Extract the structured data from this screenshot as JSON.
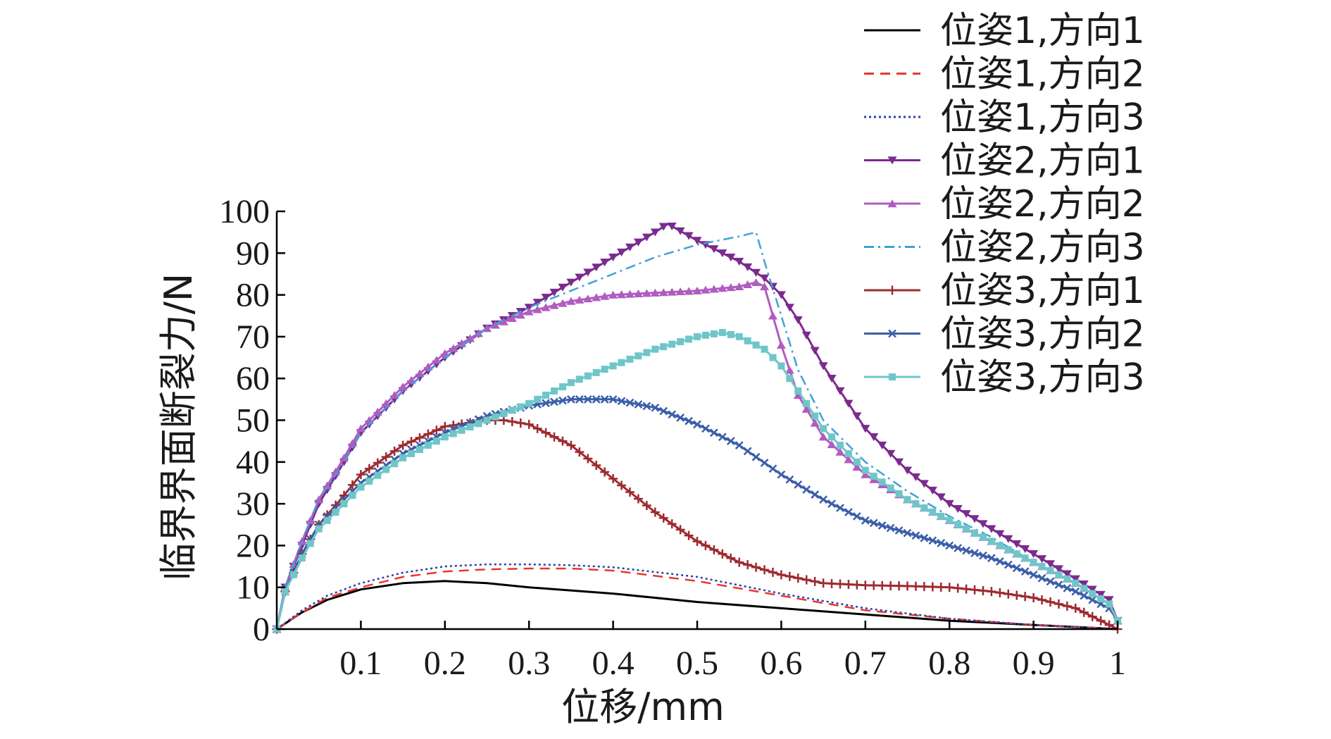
{
  "chart_data": {
    "type": "line",
    "title": "",
    "xlabel": "位移/mm",
    "ylabel": "临界界面断裂力/N",
    "xlim": [
      0,
      1
    ],
    "ylim": [
      0,
      100
    ],
    "xticks": [
      0.1,
      0.2,
      0.3,
      0.4,
      0.5,
      0.6,
      0.7,
      0.8,
      0.9,
      1
    ],
    "xtick_labels": [
      "0.1",
      "0.2",
      "0.3",
      "0.4",
      "0.5",
      "0.6",
      "0.7",
      "0.8",
      "0.9",
      "1"
    ],
    "yticks": [
      0,
      10,
      20,
      30,
      40,
      50,
      60,
      70,
      80,
      90,
      100
    ],
    "ytick_labels": [
      "0",
      "10",
      "20",
      "30",
      "40",
      "50",
      "60",
      "70",
      "80",
      "90",
      "100"
    ],
    "grid": false,
    "legend_position": "top-right",
    "series": [
      {
        "name": "位姿1,方向1",
        "color": "#000000",
        "dash": "solid",
        "marker": "none",
        "x": [
          0,
          0.03,
          0.06,
          0.1,
          0.15,
          0.2,
          0.25,
          0.3,
          0.4,
          0.5,
          0.6,
          0.7,
          0.8,
          0.9,
          0.95,
          1
        ],
        "y": [
          0,
          4,
          7,
          9.5,
          11,
          11.5,
          11,
          10,
          8.5,
          6.5,
          5,
          3.5,
          2,
          1,
          0.5,
          0
        ]
      },
      {
        "name": "位姿1,方向2",
        "color": "#e8372b",
        "dash": "dashed",
        "marker": "none",
        "x": [
          0,
          0.03,
          0.06,
          0.1,
          0.15,
          0.2,
          0.25,
          0.3,
          0.35,
          0.4,
          0.5,
          0.6,
          0.7,
          0.8,
          0.9,
          0.95,
          1
        ],
        "y": [
          0,
          4,
          7.5,
          10,
          12.5,
          13.8,
          14.3,
          14.5,
          14.5,
          14,
          11.5,
          8,
          4.5,
          2.5,
          1,
          0.5,
          0
        ]
      },
      {
        "name": "位姿1,方向3",
        "color": "#2c3fa8",
        "dash": "dotted",
        "marker": "none",
        "x": [
          0,
          0.03,
          0.06,
          0.1,
          0.15,
          0.2,
          0.25,
          0.3,
          0.35,
          0.4,
          0.5,
          0.6,
          0.7,
          0.8,
          0.9,
          0.95,
          1
        ],
        "y": [
          0,
          4.5,
          8,
          11,
          13.5,
          15,
          15.5,
          15.5,
          15.3,
          14.8,
          12.5,
          8.5,
          5,
          2.5,
          1,
          0.5,
          0
        ]
      },
      {
        "name": "位姿2,方向1",
        "color": "#7b2a8e",
        "dash": "solid",
        "marker": "triangle-down",
        "x": [
          0,
          0.01,
          0.03,
          0.05,
          0.08,
          0.1,
          0.15,
          0.2,
          0.25,
          0.3,
          0.35,
          0.4,
          0.45,
          0.465,
          0.5,
          0.55,
          0.58,
          0.6,
          0.62,
          0.65,
          0.7,
          0.75,
          0.8,
          0.85,
          0.9,
          0.95,
          0.99,
          1
        ],
        "y": [
          0,
          10,
          20,
          30,
          40,
          47,
          57,
          65,
          72,
          77,
          83,
          89,
          95,
          97,
          93,
          88,
          84,
          80,
          74,
          63,
          48,
          38,
          30,
          24,
          18,
          12,
          7,
          2
        ]
      },
      {
        "name": "位姿2,方向2",
        "color": "#b05cc0",
        "dash": "solid",
        "marker": "triangle-up",
        "x": [
          0,
          0.01,
          0.03,
          0.05,
          0.08,
          0.1,
          0.15,
          0.2,
          0.25,
          0.3,
          0.35,
          0.4,
          0.45,
          0.5,
          0.55,
          0.57,
          0.58,
          0.6,
          0.62,
          0.65,
          0.7,
          0.75,
          0.8,
          0.85,
          0.9,
          0.95,
          0.99,
          1
        ],
        "y": [
          0,
          10,
          21,
          31,
          41,
          48,
          58,
          66,
          72,
          76,
          78.5,
          80,
          80.5,
          81,
          82,
          83,
          82,
          68,
          56,
          46,
          37,
          31,
          26,
          21,
          16,
          11,
          6,
          2
        ]
      },
      {
        "name": "位姿2,方向3",
        "color": "#3fa2d6",
        "dash": "dashdot",
        "marker": "none",
        "x": [
          0,
          0.01,
          0.03,
          0.05,
          0.08,
          0.1,
          0.15,
          0.2,
          0.25,
          0.3,
          0.35,
          0.4,
          0.45,
          0.5,
          0.55,
          0.57,
          0.58,
          0.6,
          0.62,
          0.65,
          0.7,
          0.75,
          0.8,
          0.85,
          0.9,
          0.95,
          0.99,
          1
        ],
        "y": [
          0,
          10,
          21,
          31,
          40,
          47,
          57,
          65,
          72,
          77,
          81,
          85,
          89,
          92,
          94,
          95,
          88,
          75,
          62,
          50,
          40,
          33,
          27,
          22,
          16,
          11,
          6,
          2
        ]
      },
      {
        "name": "位姿3,方向1",
        "color": "#9e2a2f",
        "dash": "solid",
        "marker": "plus",
        "x": [
          0,
          0.01,
          0.03,
          0.05,
          0.08,
          0.1,
          0.15,
          0.2,
          0.25,
          0.27,
          0.3,
          0.35,
          0.4,
          0.45,
          0.5,
          0.55,
          0.6,
          0.65,
          0.7,
          0.75,
          0.8,
          0.85,
          0.9,
          0.95,
          1
        ],
        "y": [
          0,
          9,
          18,
          25,
          32,
          37,
          44,
          48.5,
          50,
          50,
          49,
          44,
          36,
          28,
          21,
          16,
          13,
          11,
          10.5,
          10.3,
          10,
          9,
          7.5,
          5,
          0
        ]
      },
      {
        "name": "位姿3,方向2",
        "color": "#3b5ea8",
        "dash": "solid",
        "marker": "x",
        "x": [
          0,
          0.01,
          0.03,
          0.05,
          0.08,
          0.1,
          0.15,
          0.2,
          0.25,
          0.3,
          0.35,
          0.4,
          0.45,
          0.5,
          0.55,
          0.6,
          0.65,
          0.7,
          0.75,
          0.8,
          0.85,
          0.9,
          0.95,
          0.99,
          1
        ],
        "y": [
          0,
          9,
          18,
          25,
          31,
          35,
          42,
          47,
          51,
          53.5,
          55,
          55,
          53,
          49,
          44,
          37,
          31,
          26,
          23,
          20,
          17,
          13,
          9,
          5,
          2
        ]
      },
      {
        "name": "位姿3,方向3",
        "color": "#6fc6c9",
        "dash": "solid",
        "marker": "square",
        "x": [
          0,
          0.01,
          0.03,
          0.05,
          0.08,
          0.1,
          0.15,
          0.2,
          0.25,
          0.3,
          0.35,
          0.4,
          0.45,
          0.5,
          0.53,
          0.55,
          0.58,
          0.6,
          0.62,
          0.65,
          0.7,
          0.75,
          0.8,
          0.85,
          0.9,
          0.95,
          0.99,
          1
        ],
        "y": [
          0,
          9,
          17,
          24,
          30,
          34,
          41,
          46,
          50,
          54,
          59,
          63,
          67,
          70,
          71,
          70,
          67,
          63,
          57,
          48,
          38,
          31,
          26,
          21,
          16,
          11,
          6,
          2
        ]
      }
    ]
  }
}
